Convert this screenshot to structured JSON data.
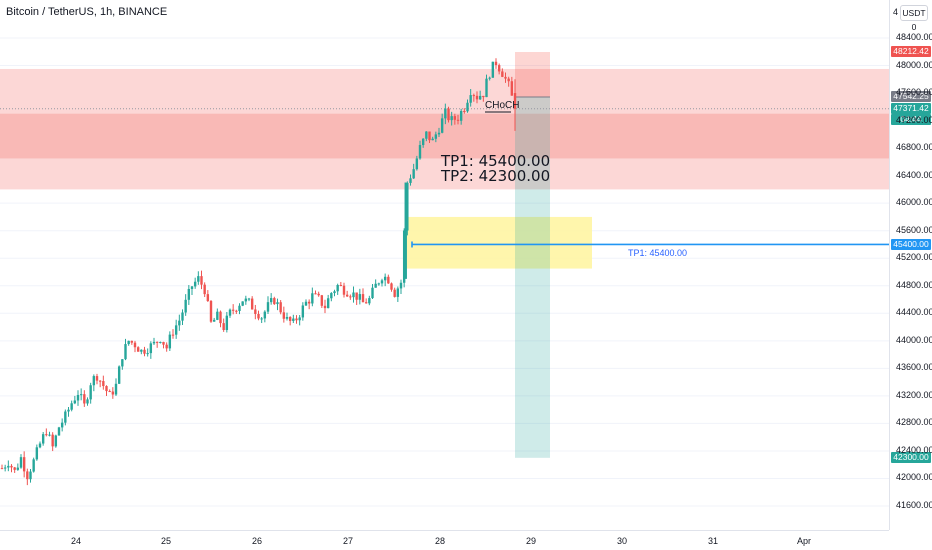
{
  "header": {
    "symbol": "Bitcoin / TetherUS, 1h, BINANCE"
  },
  "currency": {
    "prefix": "4",
    "label": "USDT 0"
  },
  "annotations": {
    "tp1": "TP1: 45400.00",
    "tp2": "TP2: 42300.00",
    "choch": "CHoCH",
    "tp1_line_label": "TP1: 45400.00"
  },
  "price_tags": {
    "top": "48212.42",
    "entry": "47542.25",
    "current": "47371.42",
    "countdown": "04:44",
    "tp1": "45400.00",
    "tp2": "42300.00"
  },
  "colors": {
    "up": "#26a69a",
    "down": "#ef5350",
    "zone_light": "#fcd7d6",
    "zone_dark": "#f9b9b6",
    "yellow_zone": "#fff59d",
    "tp_line": "#2196f3",
    "risk": "#f44336",
    "reward": "#26a69a"
  },
  "chart_data": {
    "type": "candlestick",
    "symbol": "Bitcoin / TetherUS",
    "interval": "1h",
    "exchange": "BINANCE",
    "x_ticks": [
      "24",
      "25",
      "26",
      "27",
      "28",
      "29",
      "30",
      "31",
      "Apr"
    ],
    "y_ticks": [
      41600,
      42000,
      42400,
      42800,
      43200,
      43600,
      44000,
      44400,
      44800,
      45200,
      45600,
      46000,
      46400,
      46800,
      47200,
      47600,
      48000,
      48400
    ],
    "ylim": [
      41450,
      48650
    ],
    "last_price": 47371.42,
    "zones": [
      {
        "kind": "supply",
        "low": 46200,
        "high": 47950
      },
      {
        "kind": "supply-core",
        "low": 46650,
        "high": 47300
      },
      {
        "kind": "demand",
        "low": 45050,
        "high": 45800
      }
    ],
    "horizontal_levels": [
      {
        "name": "TP1",
        "price": 45400
      }
    ],
    "position": {
      "entry": 47542.25,
      "stop": 48212.42,
      "target": 42300
    },
    "close_path": [
      [
        0,
        42150
      ],
      [
        2,
        42250
      ],
      [
        4,
        42100
      ],
      [
        6,
        42300
      ],
      [
        8,
        42050
      ],
      [
        10,
        42250
      ],
      [
        12,
        42500
      ],
      [
        14,
        42700
      ],
      [
        16,
        42450
      ],
      [
        18,
        42750
      ],
      [
        20,
        42900
      ],
      [
        22,
        43100
      ],
      [
        24,
        43250
      ],
      [
        26,
        43050
      ],
      [
        28,
        43400
      ],
      [
        30,
        43500
      ],
      [
        32,
        43350
      ],
      [
        34,
        43200
      ],
      [
        36,
        43350
      ],
      [
        38,
        43800
      ],
      [
        40,
        44000
      ],
      [
        42,
        43950
      ],
      [
        44,
        43850
      ],
      [
        46,
        43900
      ],
      [
        48,
        43950
      ],
      [
        50,
        44050
      ],
      [
        52,
        43900
      ],
      [
        54,
        44150
      ],
      [
        56,
        44300
      ],
      [
        58,
        44550
      ],
      [
        60,
        44800
      ],
      [
        62,
        44900
      ],
      [
        64,
        44750
      ],
      [
        66,
        44250
      ],
      [
        68,
        44350
      ],
      [
        70,
        44200
      ],
      [
        72,
        44400
      ],
      [
        74,
        44500
      ],
      [
        76,
        44600
      ],
      [
        78,
        44550
      ],
      [
        80,
        44450
      ],
      [
        82,
        44350
      ],
      [
        84,
        44500
      ],
      [
        86,
        44600
      ],
      [
        88,
        44450
      ],
      [
        90,
        44300
      ],
      [
        92,
        44250
      ],
      [
        94,
        44400
      ],
      [
        96,
        44550
      ],
      [
        98,
        44650
      ],
      [
        100,
        44600
      ],
      [
        102,
        44500
      ],
      [
        104,
        44700
      ],
      [
        106,
        44800
      ],
      [
        108,
        44750
      ],
      [
        110,
        44700
      ],
      [
        112,
        44650
      ],
      [
        114,
        44550
      ],
      [
        116,
        44600
      ],
      [
        118,
        44800
      ],
      [
        120,
        44950
      ],
      [
        122,
        44900
      ],
      [
        124,
        44700
      ],
      [
        126,
        44850
      ],
      [
        128,
        46300
      ],
      [
        130,
        46500
      ],
      [
        132,
        46800
      ],
      [
        134,
        47000
      ],
      [
        136,
        46900
      ],
      [
        138,
        47100
      ],
      [
        140,
        47300
      ],
      [
        142,
        47200
      ],
      [
        144,
        47250
      ],
      [
        146,
        47400
      ],
      [
        148,
        47650
      ],
      [
        150,
        47550
      ],
      [
        152,
        47600
      ],
      [
        154,
        47900
      ],
      [
        156,
        48050
      ],
      [
        158,
        47900
      ],
      [
        160,
        47700
      ],
      [
        162,
        47371
      ]
    ]
  }
}
